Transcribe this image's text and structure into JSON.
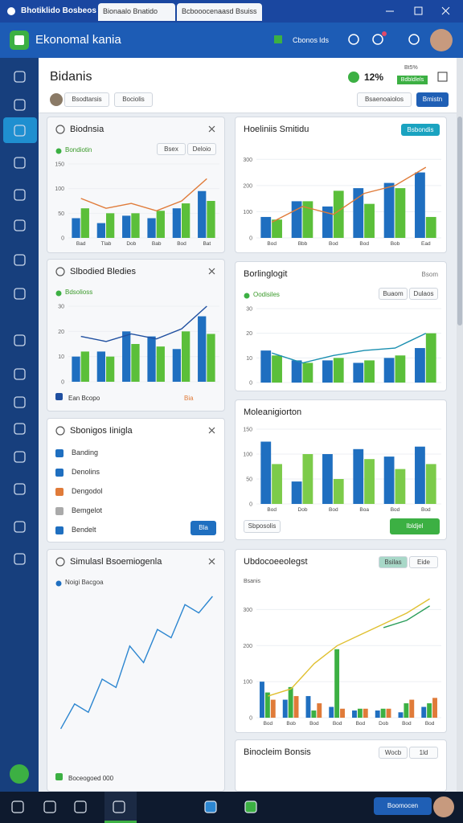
{
  "titlebar": {
    "tabs": [
      "Bhotiklido Bosbeos",
      "Bionaalo Bnatido",
      "Bcbooocenaasd Bsuiss"
    ]
  },
  "header": {
    "app": "Ekonomal kania",
    "links": [
      "Cbonos",
      "Ids"
    ]
  },
  "topbar": {
    "title": "Bidanis",
    "chips": [
      "Bsodtarsis",
      "Bociolis"
    ],
    "stat": "12%",
    "stat_label": "Bt5%",
    "stat_badge": "Bdbldlels",
    "search": "Bsaenoaiolos",
    "button": "Bmistn"
  },
  "panels": [
    {
      "title": "Biodnsia",
      "legend": "Bondiotin",
      "chips": [
        "Bsex",
        "Deloio"
      ],
      "chart": {
        "categories": [
          "Bad",
          "Tlab",
          "Dob",
          "Bab",
          "Bod",
          "Bat"
        ],
        "ylim": [
          0,
          150
        ],
        "yticks": [
          0,
          50,
          100,
          150
        ],
        "series": [
          {
            "kind": "bar",
            "color": "#1f6fc0",
            "values": [
              40,
              30,
              45,
              40,
              60,
              95
            ]
          },
          {
            "kind": "bar",
            "color": "#5bbf3a",
            "values": [
              60,
              50,
              50,
              55,
              70,
              75
            ]
          },
          {
            "kind": "line",
            "color": "#e07b39",
            "values": [
              80,
              60,
              70,
              55,
              75,
              120
            ]
          }
        ]
      }
    },
    {
      "title": "Slbodied Bledies",
      "legend": "Bdsolioss",
      "footer": "Ean Bcopo",
      "footer_value": "Bia",
      "chart": {
        "ylim": [
          0,
          30
        ],
        "yticks": [
          0,
          10,
          20,
          30
        ],
        "series": [
          {
            "kind": "bar",
            "color": "#1f6fc0",
            "values": [
              10,
              12,
              20,
              18,
              13,
              26
            ]
          },
          {
            "kind": "bar",
            "color": "#5bbf3a",
            "values": [
              12,
              10,
              15,
              14,
              20,
              19
            ]
          },
          {
            "kind": "line",
            "color": "#1f4fa0",
            "values": [
              18,
              16,
              19,
              17,
              21,
              30
            ]
          }
        ]
      }
    },
    {
      "title": "Sbonigos Iinigla",
      "items": [
        "Banding",
        "Denolins",
        "Dengodol",
        "Bemgelot",
        "Bendelt"
      ],
      "button": "Bla",
      "button_color": "#1f6fc0"
    },
    {
      "title": "Simulasl Bsoemiogenla",
      "legend": "Noigi Bacgoa",
      "footer": "Boceogoed 000",
      "chart": {
        "ylim": [
          0,
          100
        ],
        "series": [
          {
            "kind": "line",
            "color": "#2c86d0",
            "values": [
              20,
              35,
              30,
              50,
              45,
              70,
              60,
              80,
              75,
              95,
              90,
              100
            ]
          }
        ]
      }
    },
    {
      "title": "Hoeliniis Smitidu",
      "button": "Bsbondis",
      "button_color": "#1aa3c0",
      "chart": {
        "categories": [
          "Bod",
          "Bbb",
          "Bod",
          "Bod",
          "Bob",
          "Ead"
        ],
        "ylim": [
          0,
          350
        ],
        "yticks": [
          0,
          100,
          200,
          300
        ],
        "series": [
          {
            "kind": "bar",
            "color": "#1f6fc0",
            "values": [
              80,
              140,
              120,
              190,
              210,
              250
            ]
          },
          {
            "kind": "bar",
            "color": "#5bbf3a",
            "values": [
              70,
              140,
              180,
              130,
              190,
              80
            ]
          },
          {
            "kind": "line",
            "color": "#e07b39",
            "values": [
              60,
              120,
              90,
              170,
              200,
              270
            ]
          }
        ]
      }
    },
    {
      "title": "Borlinglogit",
      "corner": "Bsom",
      "legend": "Oodisiles",
      "chips": [
        "Buaom",
        "Dulaos"
      ],
      "chart": {
        "ylim": [
          0,
          30
        ],
        "yticks": [
          0,
          10,
          20,
          30
        ],
        "series": [
          {
            "kind": "bar",
            "color": "#1f6fc0",
            "values": [
              13,
              9,
              9,
              8,
              10,
              14
            ]
          },
          {
            "kind": "bar",
            "color": "#5bbf3a",
            "values": [
              11,
              8,
              10,
              9,
              11,
              20
            ]
          },
          {
            "kind": "line",
            "color": "#1a8fb0",
            "values": [
              12,
              8,
              11,
              13,
              14,
              20
            ]
          }
        ]
      }
    },
    {
      "title": "Moleanigiorton",
      "footer": "Sbposolis",
      "button": "Ibldjel",
      "button_color": "#3cb043",
      "chart": {
        "categories": [
          "Bod",
          "Dob",
          "Bod",
          "Boa",
          "Bod",
          "Bod"
        ],
        "ylim": [
          0,
          150
        ],
        "yticks": [
          0,
          50,
          100,
          150
        ],
        "series": [
          {
            "kind": "bar",
            "color": "#1f6fc0",
            "values": [
              125,
              45,
              100,
              110,
              95,
              115
            ]
          },
          {
            "kind": "bar",
            "color": "#7ccb4a",
            "values": [
              80,
              100,
              50,
              90,
              70,
              80
            ]
          }
        ]
      }
    },
    {
      "title": "Ubdocoeeolegst",
      "sub": "Bsanis",
      "chips": [
        "Bsilas",
        "Eide"
      ],
      "chart": {
        "categories": [
          "Bod",
          "Bob",
          "Bod",
          "Bod",
          "Bod",
          "Dob",
          "Bod",
          "Bod"
        ],
        "ylim": [
          0,
          350
        ],
        "yticks": [
          0,
          100,
          200,
          300
        ],
        "series": [
          {
            "kind": "bar",
            "color": "#1f6fc0",
            "values": [
              100,
              50,
              60,
              30,
              20,
              20,
              15,
              30
            ]
          },
          {
            "kind": "bar",
            "color": "#3cb043",
            "values": [
              70,
              85,
              20,
              190,
              25,
              25,
              40,
              40
            ]
          },
          {
            "kind": "bar",
            "color": "#e07b39",
            "values": [
              50,
              60,
              40,
              25,
              25,
              25,
              50,
              55
            ]
          },
          {
            "kind": "line",
            "color": "#e0c030",
            "values": [
              60,
              80,
              150,
              200,
              230,
              260,
              290,
              330
            ]
          },
          {
            "kind": "line",
            "color": "#2a9d5a",
            "values": [
              null,
              null,
              null,
              null,
              null,
              250,
              270,
              310
            ]
          }
        ]
      }
    },
    {
      "title": "Binocleim Bonsis",
      "chips": [
        "Wocb",
        "1ld"
      ]
    }
  ],
  "taskbar": {
    "button": "Boomocen"
  }
}
